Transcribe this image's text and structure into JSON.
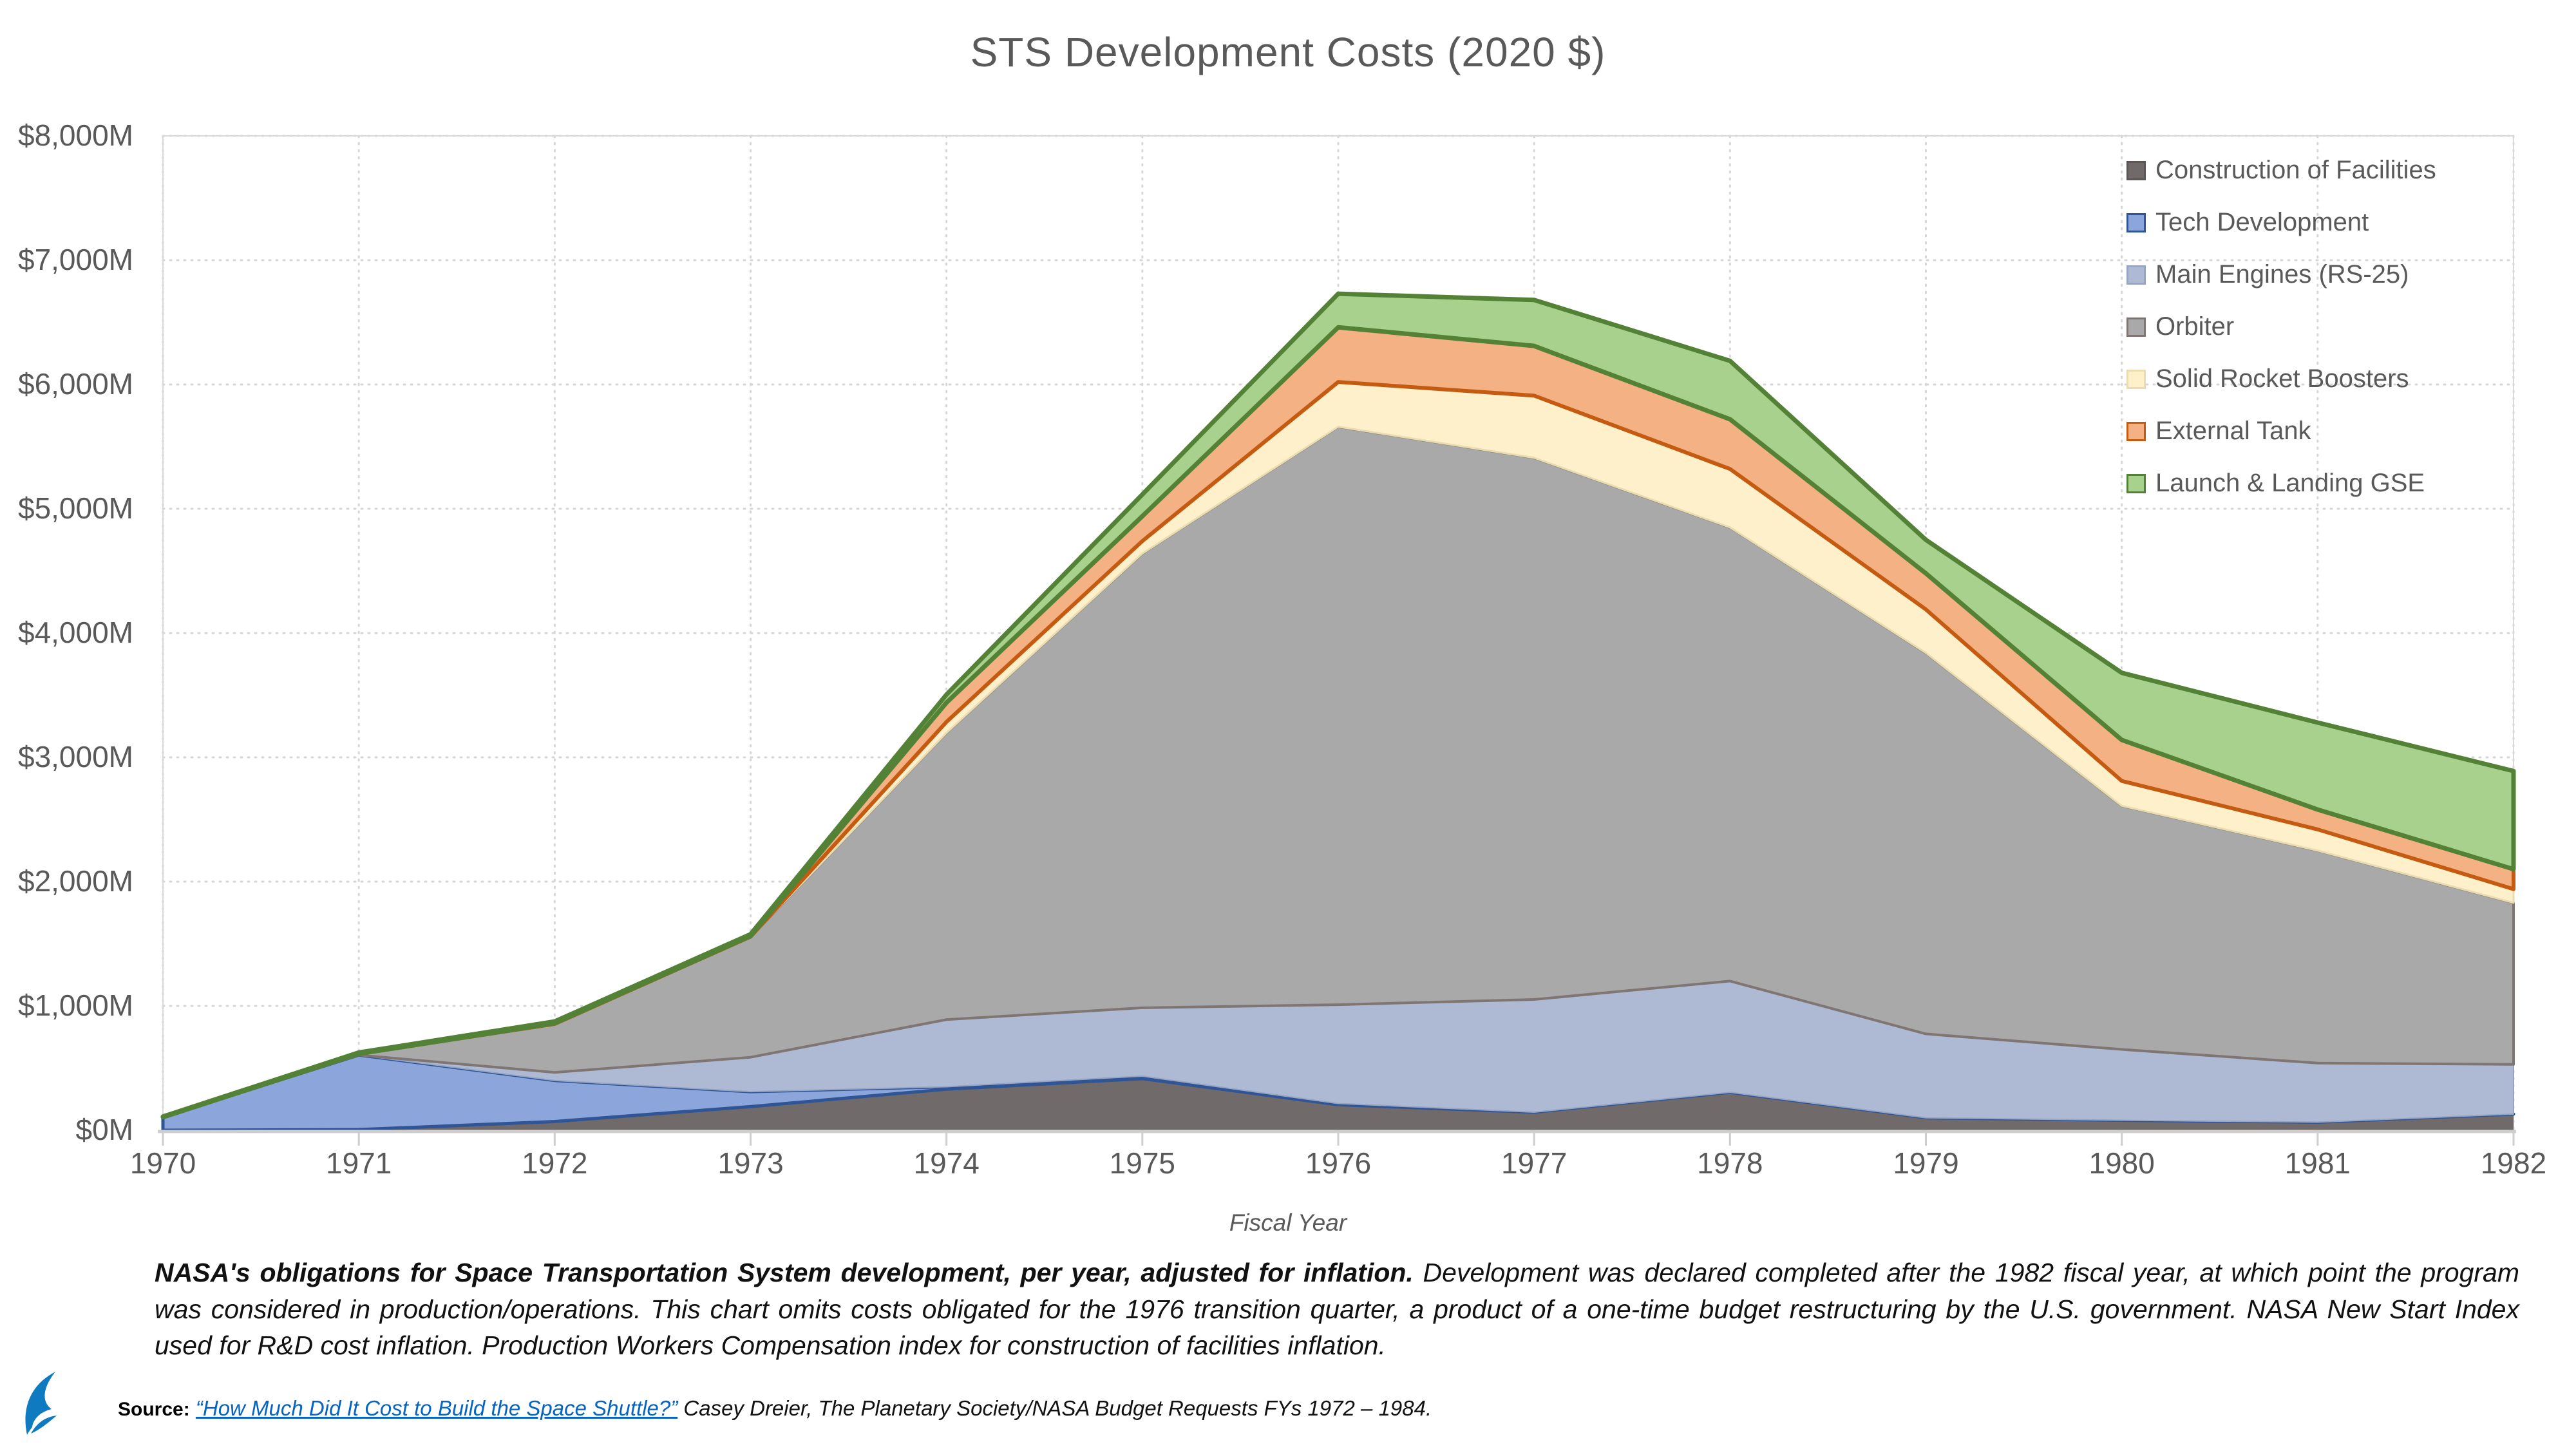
{
  "title": "STS Development Costs (2020 $)",
  "chart_data": {
    "type": "area",
    "stacked": true,
    "title": "STS Development Costs (2020 $)",
    "xlabel": "Fiscal Year",
    "ylabel": "",
    "x": [
      1970,
      1971,
      1972,
      1973,
      1974,
      1975,
      1976,
      1977,
      1978,
      1979,
      1980,
      1981,
      1982
    ],
    "ylim": [
      0,
      8000
    ],
    "ytick_step": 1000,
    "ytick_labels": [
      "$0M",
      "$1,000M",
      "$2,000M",
      "$3,000M",
      "$4,000M",
      "$5,000M",
      "$6,000M",
      "$7,000M",
      "$8,000M"
    ],
    "grid": "dotted",
    "legend_position": "top-right",
    "units": "millions of 2020 dollars",
    "series": [
      {
        "name": "Construction of Facilities",
        "fill": "#716a6a",
        "stroke": "#5c5656",
        "sw": 0,
        "values": [
          0,
          5,
          70,
          190,
          330,
          415,
          205,
          145,
          305,
          100,
          80,
          65,
          130
        ]
      },
      {
        "name": "Tech Development",
        "fill": "#8ca6db",
        "stroke": "#2f5597",
        "sw": 5,
        "values": [
          105,
          600,
          330,
          120,
          20,
          20,
          10,
          0,
          0,
          0,
          0,
          0,
          0
        ]
      },
      {
        "name": "Main Engines (RS-25)",
        "fill": "#aebad4",
        "stroke": "#96a5c4",
        "sw": 2,
        "values": [
          0,
          0,
          65,
          277,
          540,
          550,
          795,
          907,
          895,
          675,
          570,
          475,
          400
        ]
      },
      {
        "name": "Orbiter",
        "fill": "#a9a9a9",
        "stroke": "#7f7674",
        "sw": 4,
        "values": [
          0,
          10,
          390,
          967,
          2307,
          3655,
          4650,
          4358,
          3650,
          3065,
          1960,
          1710,
          1300
        ]
      },
      {
        "name": "Solid Rocket Boosters",
        "fill": "#fdf0cb",
        "stroke": "#e8dcb0",
        "sw": 3,
        "values": [
          0,
          0,
          0,
          3,
          88,
          100,
          360,
          500,
          470,
          350,
          200,
          170,
          110
        ]
      },
      {
        "name": "External Tank",
        "fill": "#f4b183",
        "stroke": "#c55a11",
        "sw": 6,
        "values": [
          0,
          0,
          5,
          5,
          155,
          200,
          440,
          400,
          400,
          290,
          330,
          160,
          160
        ]
      },
      {
        "name": "Launch & Landing GSE",
        "fill": "#a9d18e",
        "stroke": "#538135",
        "sw": 7,
        "values": [
          5,
          10,
          15,
          15,
          65,
          175,
          270,
          370,
          470,
          270,
          540,
          700,
          790
        ]
      }
    ]
  },
  "caption": {
    "lead": "NASA's obligations for Space Transportation System development, per year, adjusted for inflation.",
    "body": " Development was declared completed after the 1982 fiscal year, at which point the program was considered in production/operations. This chart omits costs obligated for the 1976 transition quarter, a product of a one-time budget restructuring by the U.S. government. NASA New Start Index used for R&D cost inflation. Production Workers Compensation index for construction of facilities inflation."
  },
  "source": {
    "label": "Source:",
    "link_text": "“How Much Did It Cost to Build the Space Shuttle?”",
    "rest": " Casey Dreier, The Planetary Society/NASA Budget Requests FYs 1972 – 1984."
  }
}
